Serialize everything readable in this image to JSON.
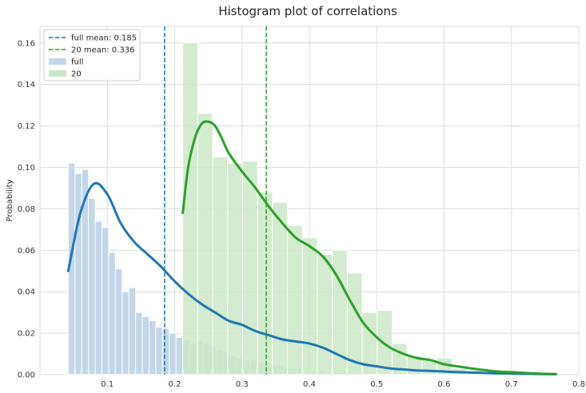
{
  "chart_data": {
    "type": "histogram",
    "title": "Histogram plot of correlations",
    "xlabel": "",
    "ylabel": "Probability",
    "xlim": [
      0.0,
      0.8
    ],
    "ylim": [
      0.0,
      0.168
    ],
    "xticks": [
      0.1,
      0.2,
      0.3,
      0.4,
      0.5,
      0.6,
      0.7,
      0.8
    ],
    "xtick_labels": [
      "0.1",
      "0.2",
      "0.3",
      "0.4",
      "0.5",
      "0.6",
      "0.7",
      "0.8"
    ],
    "yticks": [
      0.0,
      0.02,
      0.04,
      0.06,
      0.08,
      0.1,
      0.12,
      0.14,
      0.16
    ],
    "ytick_labels": [
      "0.00",
      "0.02",
      "0.04",
      "0.06",
      "0.08",
      "0.10",
      "0.12",
      "0.14",
      "0.16"
    ],
    "grid": true,
    "legend_position": "top-left",
    "series": [
      {
        "name": "full",
        "color": "#1f77b4",
        "bar_color": "#c3d7ea",
        "bin_start": 0.042,
        "bin_width": 0.01,
        "values": [
          0.102,
          0.097,
          0.099,
          0.085,
          0.074,
          0.071,
          0.059,
          0.051,
          0.04,
          0.042,
          0.03,
          0.028,
          0.026,
          0.023,
          0.022,
          0.02,
          0.018,
          0.017,
          0.015,
          0.016,
          0.015,
          0.014,
          0.012,
          0.011,
          0.009,
          0.008,
          0.007,
          0.007,
          0.006,
          0.005,
          0.005,
          0.004,
          0.003,
          0.003,
          0.003,
          0.002,
          0.002,
          0.002,
          0.001,
          0.001,
          0.001,
          0.001,
          0.0005,
          0.0005,
          0.0005,
          0.0003,
          0.0003,
          0.0003
        ],
        "kde_x": [
          0.042,
          0.06,
          0.08,
          0.1,
          0.12,
          0.14,
          0.16,
          0.18,
          0.2,
          0.22,
          0.24,
          0.26,
          0.28,
          0.3,
          0.32,
          0.34,
          0.36,
          0.38,
          0.4,
          0.42,
          0.44,
          0.46,
          0.48,
          0.5,
          0.52,
          0.54,
          0.56,
          0.58,
          0.6,
          0.62,
          0.64,
          0.66,
          0.68,
          0.7,
          0.72,
          0.74,
          0.766
        ],
        "kde_y": [
          0.05,
          0.078,
          0.092,
          0.087,
          0.073,
          0.064,
          0.058,
          0.052,
          0.045,
          0.039,
          0.034,
          0.03,
          0.026,
          0.024,
          0.021,
          0.019,
          0.017,
          0.016,
          0.015,
          0.013,
          0.01,
          0.007,
          0.005,
          0.004,
          0.003,
          0.0025,
          0.002,
          0.0018,
          0.0015,
          0.0012,
          0.001,
          0.0008,
          0.0006,
          0.0005,
          0.0004,
          0.0003,
          0.0002
        ],
        "mean": 0.185,
        "mean_label": "full mean: 0.185"
      },
      {
        "name": "20",
        "color": "#2ca02c",
        "bar_color": "#cbe8c6",
        "bin_start": 0.212,
        "bin_width": 0.0222,
        "values": [
          0.16,
          0.126,
          0.105,
          0.102,
          0.103,
          0.088,
          0.083,
          0.072,
          0.066,
          0.058,
          0.06,
          0.049,
          0.03,
          0.031,
          0.015,
          0.009,
          0.007,
          0.008,
          0.003,
          0.002,
          0.0015,
          0.001,
          0.0005,
          0.0003,
          0.0002
        ],
        "kde_x": [
          0.212,
          0.22,
          0.23,
          0.24,
          0.25,
          0.26,
          0.27,
          0.28,
          0.3,
          0.32,
          0.34,
          0.36,
          0.38,
          0.4,
          0.42,
          0.44,
          0.46,
          0.48,
          0.5,
          0.52,
          0.54,
          0.56,
          0.58,
          0.6,
          0.62,
          0.64,
          0.66,
          0.68,
          0.7,
          0.72,
          0.74,
          0.766
        ],
        "kde_y": [
          0.078,
          0.1,
          0.114,
          0.121,
          0.122,
          0.12,
          0.114,
          0.107,
          0.098,
          0.09,
          0.081,
          0.073,
          0.066,
          0.062,
          0.057,
          0.048,
          0.036,
          0.025,
          0.018,
          0.013,
          0.01,
          0.008,
          0.007,
          0.005,
          0.004,
          0.003,
          0.0022,
          0.0015,
          0.0012,
          0.0008,
          0.0005,
          0.0003
        ],
        "mean": 0.336,
        "mean_label": "20 mean: 0.336"
      }
    ]
  }
}
